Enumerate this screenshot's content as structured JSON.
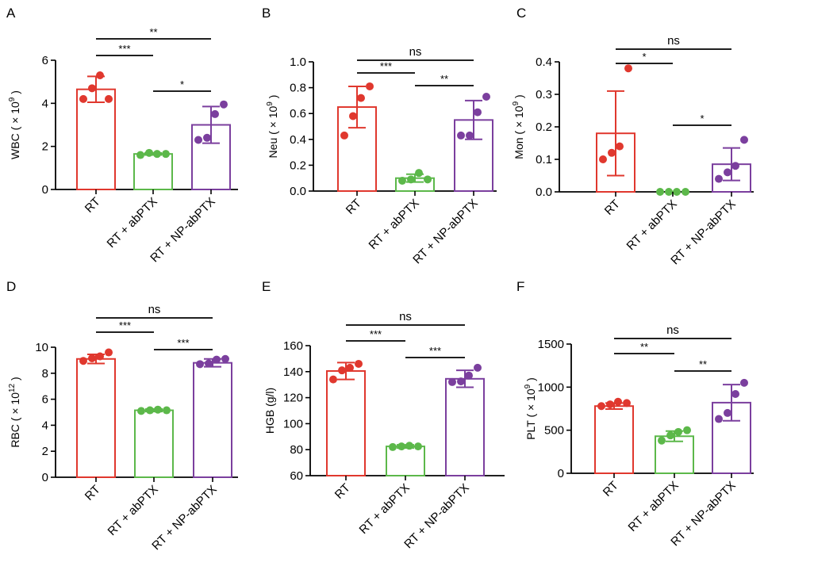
{
  "colors": {
    "RT": "#e0382e",
    "RT + abPTX": "#5cb84a",
    "RT + NP-abPTX": "#7b3f9e",
    "axis": "#000000"
  },
  "chart_data": [
    {
      "type": "bar",
      "panel_label": "A",
      "categories": [
        "RT",
        "RT + abPTX",
        "RT + NP-abPTX"
      ],
      "ylabel_main": "WBC ( × 10",
      "ylabel_sup": "9",
      "ylabel_end": ")",
      "ylim": [
        0,
        6
      ],
      "yticks": [
        0,
        2,
        4,
        6
      ],
      "tick_labels": [
        "0",
        "2",
        "4",
        "6"
      ],
      "series": [
        {
          "category": "RT",
          "mean": 4.65,
          "sd": 0.6,
          "points": [
            4.2,
            4.7,
            5.3,
            4.2
          ]
        },
        {
          "category": "RT + abPTX",
          "mean": 1.65,
          "sd": 0.05,
          "points": [
            1.6,
            1.7,
            1.65,
            1.65
          ]
        },
        {
          "category": "RT + NP-abPTX",
          "mean": 3.0,
          "sd": 0.85,
          "points": [
            2.3,
            2.4,
            3.5,
            3.95
          ]
        }
      ],
      "comparisons": [
        {
          "from": 0,
          "to": 1,
          "label": "***"
        },
        {
          "from": 0,
          "to": 2,
          "label": "**"
        },
        {
          "from": 1,
          "to": 2,
          "label": "*"
        }
      ]
    },
    {
      "type": "bar",
      "panel_label": "B",
      "categories": [
        "RT",
        "RT + abPTX",
        "RT + NP-abPTX"
      ],
      "ylabel_main": "Neu ( × 10",
      "ylabel_sup": "9",
      "ylabel_end": ")",
      "ylim": [
        0,
        1.0
      ],
      "yticks": [
        0,
        0.2,
        0.4,
        0.6,
        0.8,
        1.0
      ],
      "tick_labels": [
        "0.0",
        "0.2",
        "0.4",
        "0.6",
        "0.8",
        "1.0"
      ],
      "series": [
        {
          "category": "RT",
          "mean": 0.65,
          "sd": 0.16,
          "points": [
            0.43,
            0.58,
            0.72,
            0.81
          ]
        },
        {
          "category": "RT + abPTX",
          "mean": 0.1,
          "sd": 0.03,
          "points": [
            0.08,
            0.09,
            0.14,
            0.09
          ]
        },
        {
          "category": "RT + NP-abPTX",
          "mean": 0.55,
          "sd": 0.15,
          "points": [
            0.43,
            0.43,
            0.61,
            0.73
          ]
        }
      ],
      "comparisons": [
        {
          "from": 0,
          "to": 1,
          "label": "***"
        },
        {
          "from": 0,
          "to": 2,
          "label": "ns"
        },
        {
          "from": 1,
          "to": 2,
          "label": "**"
        }
      ]
    },
    {
      "type": "bar",
      "panel_label": "C",
      "categories": [
        "RT",
        "RT + abPTX",
        "RT + NP-abPTX"
      ],
      "ylabel_main": "Mon ( × 10",
      "ylabel_sup": "9",
      "ylabel_end": ")",
      "ylim": [
        0,
        0.4
      ],
      "yticks": [
        0,
        0.1,
        0.2,
        0.3,
        0.4
      ],
      "tick_labels": [
        "0.0",
        "0.1",
        "0.2",
        "0.3",
        "0.4"
      ],
      "series": [
        {
          "category": "RT",
          "mean": 0.18,
          "sd": 0.13,
          "points": [
            0.1,
            0.12,
            0.14,
            0.38
          ]
        },
        {
          "category": "RT + abPTX",
          "mean": 0.0,
          "sd": 0.0,
          "points": [
            0.0,
            0.0,
            0.0,
            0.0
          ]
        },
        {
          "category": "RT + NP-abPTX",
          "mean": 0.085,
          "sd": 0.05,
          "points": [
            0.04,
            0.06,
            0.08,
            0.16
          ]
        }
      ],
      "comparisons": [
        {
          "from": 0,
          "to": 1,
          "label": "*"
        },
        {
          "from": 0,
          "to": 2,
          "label": "ns"
        },
        {
          "from": 1,
          "to": 2,
          "label": "*"
        }
      ]
    },
    {
      "type": "bar",
      "panel_label": "D",
      "categories": [
        "RT",
        "RT + abPTX",
        "RT + NP-abPTX"
      ],
      "ylabel_main": "RBC ( × 10",
      "ylabel_sup": "12",
      "ylabel_end": ")",
      "ylim": [
        0,
        10
      ],
      "yticks": [
        0,
        2,
        4,
        6,
        8,
        10
      ],
      "tick_labels": [
        "0",
        "2",
        "4",
        "6",
        "8",
        "10"
      ],
      "series": [
        {
          "category": "RT",
          "mean": 9.1,
          "sd": 0.35,
          "points": [
            8.95,
            9.15,
            9.3,
            9.6
          ]
        },
        {
          "category": "RT + abPTX",
          "mean": 5.15,
          "sd": 0.1,
          "points": [
            5.1,
            5.15,
            5.2,
            5.15
          ]
        },
        {
          "category": "RT + NP-abPTX",
          "mean": 8.8,
          "sd": 0.3,
          "points": [
            8.7,
            8.75,
            9.05,
            9.1
          ]
        }
      ],
      "comparisons": [
        {
          "from": 0,
          "to": 1,
          "label": "***"
        },
        {
          "from": 0,
          "to": 2,
          "label": "ns"
        },
        {
          "from": 1,
          "to": 2,
          "label": "***"
        }
      ]
    },
    {
      "type": "bar",
      "panel_label": "E",
      "categories": [
        "RT",
        "RT + abPTX",
        "RT + NP-abPTX"
      ],
      "ylabel_main": "HGB (g/l)",
      "ylabel_sup": "",
      "ylabel_end": "",
      "ylim": [
        60,
        160
      ],
      "yticks": [
        60,
        80,
        100,
        120,
        140,
        160
      ],
      "tick_labels": [
        "60",
        "80",
        "100",
        "120",
        "140",
        "160"
      ],
      "series": [
        {
          "category": "RT",
          "mean": 140.5,
          "sd": 6.5,
          "points": [
            134,
            141,
            143,
            146
          ]
        },
        {
          "category": "RT + abPTX",
          "mean": 82.5,
          "sd": 1.2,
          "points": [
            82,
            82.5,
            83,
            82.5
          ]
        },
        {
          "category": "RT + NP-abPTX",
          "mean": 134.5,
          "sd": 6.5,
          "points": [
            132,
            132.5,
            137,
            143
          ]
        }
      ],
      "comparisons": [
        {
          "from": 0,
          "to": 1,
          "label": "***"
        },
        {
          "from": 0,
          "to": 2,
          "label": "ns"
        },
        {
          "from": 1,
          "to": 2,
          "label": "***"
        }
      ]
    },
    {
      "type": "bar",
      "panel_label": "F",
      "categories": [
        "RT",
        "RT + abPTX",
        "RT + NP-abPTX"
      ],
      "ylabel_main": "PLT ( × 10",
      "ylabel_sup": "9",
      "ylabel_end": ")",
      "ylim": [
        0,
        1500
      ],
      "yticks": [
        0,
        500,
        1000,
        1500
      ],
      "tick_labels": [
        "0",
        "500",
        "1000",
        "1500"
      ],
      "series": [
        {
          "category": "RT",
          "mean": 780,
          "sd": 35,
          "points": [
            780,
            800,
            830,
            815
          ]
        },
        {
          "category": "RT + abPTX",
          "mean": 430,
          "sd": 60,
          "points": [
            380,
            440,
            480,
            500
          ]
        },
        {
          "category": "RT + NP-abPTX",
          "mean": 820,
          "sd": 210,
          "points": [
            630,
            700,
            920,
            1050
          ]
        }
      ],
      "comparisons": [
        {
          "from": 0,
          "to": 1,
          "label": "**"
        },
        {
          "from": 0,
          "to": 2,
          "label": "ns"
        },
        {
          "from": 1,
          "to": 2,
          "label": "**"
        }
      ]
    }
  ]
}
